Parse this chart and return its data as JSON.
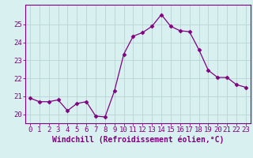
{
  "x": [
    0,
    1,
    2,
    3,
    4,
    5,
    6,
    7,
    8,
    9,
    10,
    11,
    12,
    13,
    14,
    15,
    16,
    17,
    18,
    19,
    20,
    21,
    22,
    23
  ],
  "y": [
    20.9,
    20.7,
    20.7,
    20.8,
    20.2,
    20.6,
    20.7,
    19.9,
    19.85,
    21.3,
    23.35,
    24.35,
    24.55,
    24.9,
    25.55,
    24.9,
    24.65,
    24.6,
    23.6,
    22.45,
    22.05,
    22.05,
    21.65,
    21.5
  ],
  "line_color": "#800080",
  "marker": "D",
  "marker_size": 2.5,
  "bg_color": "#d8f0f0",
  "grid_color": "#b8d4d4",
  "xlabel": "Windchill (Refroidissement éolien,°C)",
  "xlabel_fontsize": 7,
  "tick_fontsize": 6.5,
  "ylim": [
    19.5,
    26.1
  ],
  "yticks": [
    20,
    21,
    22,
    23,
    24,
    25
  ],
  "xlim": [
    -0.5,
    23.5
  ],
  "xticks": [
    0,
    1,
    2,
    3,
    4,
    5,
    6,
    7,
    8,
    9,
    10,
    11,
    12,
    13,
    14,
    15,
    16,
    17,
    18,
    19,
    20,
    21,
    22,
    23
  ]
}
